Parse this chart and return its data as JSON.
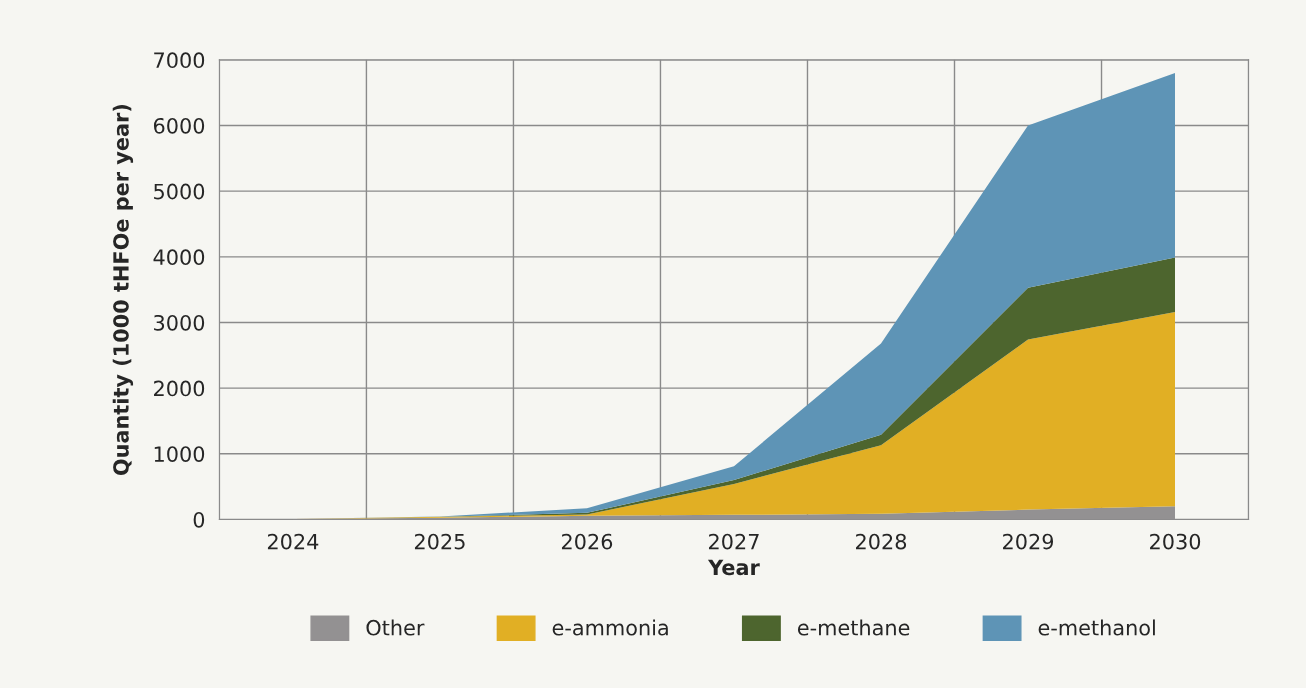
{
  "chart_data": {
    "type": "area",
    "stacked": true,
    "xlabel": "Year",
    "ylabel": "Quantity (1000 tHFOe per year)",
    "categories": [
      "2024",
      "2025",
      "2026",
      "2027",
      "2028",
      "2029",
      "2030"
    ],
    "series": [
      {
        "name": "Other",
        "color": "#939192",
        "values": [
          5,
          25,
          55,
          70,
          85,
          150,
          200
        ]
      },
      {
        "name": "e-ammonia",
        "color": "#e1af24",
        "values": [
          0,
          15,
          20,
          470,
          1045,
          2590,
          2960
        ]
      },
      {
        "name": "e-methane",
        "color": "#4d652e",
        "values": [
          0,
          0,
          25,
          60,
          160,
          790,
          830
        ]
      },
      {
        "name": "e-methanol",
        "color": "#5e94b6",
        "values": [
          0,
          5,
          70,
          210,
          1390,
          2470,
          2810
        ]
      }
    ],
    "ylim": [
      0,
      7000
    ],
    "yticks": [
      0,
      1000,
      2000,
      3000,
      4000,
      5000,
      6000,
      7000
    ],
    "grid": true,
    "legend": "bottom"
  }
}
